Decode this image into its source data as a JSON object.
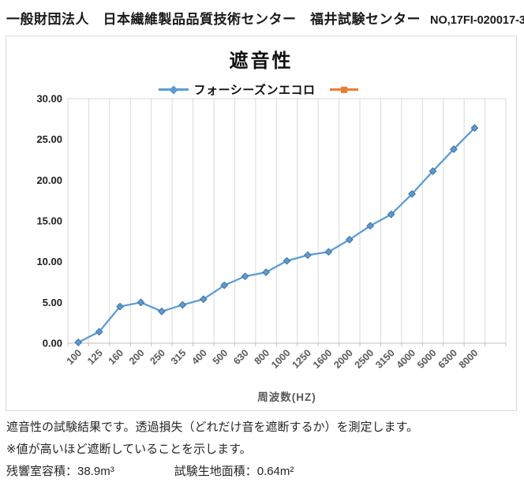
{
  "header": {
    "organization": "一般財団法人　日本繊維製品品質技術センター　福井試験センター",
    "report_no": "NO,17FI-020017-3"
  },
  "chart": {
    "title": "遮音性",
    "legend": [
      {
        "label": "フォーシーズンエコロ",
        "color": "#5b9bd5",
        "marker": "diamond"
      },
      {
        "label": "",
        "color": "#ed7d31",
        "marker": "square"
      }
    ]
  },
  "chart_data": {
    "type": "line",
    "title": "遮音性",
    "xlabel": "周波数(HZ)",
    "ylabel": "",
    "categories": [
      "100",
      "125",
      "160",
      "200",
      "250",
      "315",
      "400",
      "500",
      "630",
      "800",
      "1000",
      "1250",
      "1600",
      "2000",
      "2500",
      "3150",
      "4000",
      "5000",
      "6300",
      "8000"
    ],
    "series": [
      {
        "name": "フォーシーズンエコロ",
        "color": "#5b9bd5",
        "marker": "diamond",
        "marker_stroke": "#41719c",
        "values": [
          0.1,
          1.4,
          4.5,
          5.0,
          3.9,
          4.7,
          5.4,
          7.1,
          8.2,
          8.7,
          10.1,
          10.8,
          11.2,
          12.7,
          14.4,
          15.8,
          18.3,
          21.1,
          23.8,
          26.4
        ]
      },
      {
        "name": "",
        "color": "#ed7d31",
        "marker": "square",
        "values": []
      }
    ],
    "ylim": [
      0,
      30
    ],
    "ytick_step": 5,
    "ytick_decimals": 2,
    "grid": "vertical",
    "grid_color": "#d9d9d9",
    "axis_color": "#bfbfbf",
    "legend_position": "top-center"
  },
  "notes": {
    "line1": "遮音性の試験結果です。透過損失（どれだけ音を遮断するか）を測定します。",
    "line2": "※値が高いほど遮断していることを示します。",
    "room_volume": "残響室容積：38.9m³",
    "fabric_area": "試験生地面積：0.64m²"
  }
}
